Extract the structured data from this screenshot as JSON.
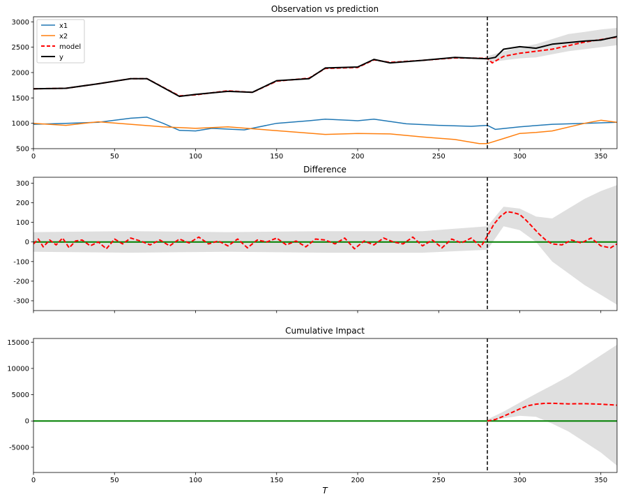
{
  "chart_data": [
    {
      "type": "line",
      "title": "Observation vs prediction",
      "xlabel": "",
      "ylabel": "",
      "xlim": [
        0,
        360
      ],
      "ylim": [
        500,
        3100
      ],
      "xticks": [
        0,
        50,
        100,
        150,
        200,
        250,
        300,
        350
      ],
      "yticks": [
        500,
        1000,
        1500,
        2000,
        2500,
        3000
      ],
      "intervention_x": 280,
      "grid": false,
      "legend_position": "top-left",
      "legend": [
        "x1",
        "x2",
        "model",
        "y"
      ],
      "band_label": "model confidence interval",
      "series": [
        {
          "name": "x1",
          "color": "#1f77b4",
          "style": "solid",
          "x": [
            0,
            20,
            40,
            60,
            70,
            80,
            90,
            100,
            110,
            130,
            150,
            170,
            180,
            200,
            210,
            230,
            250,
            270,
            280,
            285,
            300,
            320,
            340,
            360
          ],
          "y": [
            980,
            1000,
            1020,
            1100,
            1120,
            1000,
            860,
            850,
            900,
            870,
            1000,
            1050,
            1080,
            1050,
            1080,
            990,
            960,
            940,
            960,
            880,
            930,
            980,
            1000,
            1020
          ]
        },
        {
          "name": "x2",
          "color": "#ff7f0e",
          "style": "solid",
          "x": [
            0,
            20,
            40,
            60,
            80,
            100,
            120,
            140,
            160,
            180,
            200,
            220,
            240,
            260,
            275,
            280,
            290,
            300,
            310,
            320,
            340,
            350,
            360
          ],
          "y": [
            1000,
            960,
            1030,
            980,
            930,
            900,
            930,
            880,
            830,
            780,
            800,
            790,
            730,
            680,
            600,
            600,
            700,
            800,
            820,
            850,
            1000,
            1060,
            1020
          ]
        },
        {
          "name": "model",
          "color": "#ff0000",
          "style": "dashed",
          "x": [
            0,
            20,
            40,
            60,
            70,
            90,
            100,
            120,
            135,
            150,
            170,
            180,
            200,
            210,
            220,
            240,
            260,
            280,
            283,
            290,
            300,
            310,
            320,
            340,
            350,
            360
          ],
          "y": [
            1680,
            1690,
            1780,
            1880,
            1880,
            1540,
            1560,
            1640,
            1610,
            1830,
            1890,
            2080,
            2100,
            2250,
            2200,
            2240,
            2290,
            2280,
            2190,
            2320,
            2380,
            2420,
            2460,
            2600,
            2650,
            2700
          ]
        },
        {
          "name": "y",
          "color": "#000000",
          "style": "solid",
          "x": [
            0,
            20,
            40,
            60,
            70,
            90,
            100,
            120,
            135,
            150,
            170,
            180,
            200,
            210,
            220,
            240,
            260,
            280,
            285,
            290,
            300,
            310,
            320,
            340,
            350,
            360
          ],
          "y": [
            1680,
            1690,
            1780,
            1880,
            1880,
            1530,
            1570,
            1630,
            1610,
            1840,
            1880,
            2090,
            2110,
            2260,
            2190,
            2240,
            2300,
            2270,
            2300,
            2460,
            2510,
            2480,
            2560,
            2620,
            2640,
            2710
          ]
        }
      ],
      "band": {
        "x": [
          280,
          290,
          300,
          310,
          320,
          330,
          340,
          350,
          360
        ],
        "lower": [
          2200,
          2240,
          2280,
          2300,
          2360,
          2420,
          2460,
          2500,
          2540
        ],
        "upper": [
          2320,
          2420,
          2500,
          2560,
          2660,
          2760,
          2800,
          2850,
          2880
        ]
      }
    },
    {
      "type": "line",
      "title": "Difference",
      "xlabel": "",
      "ylabel": "",
      "xlim": [
        0,
        360
      ],
      "ylim": [
        -350,
        330
      ],
      "yticks": [
        -300,
        -200,
        -100,
        0,
        100,
        200,
        300
      ],
      "intervention_x": 280,
      "zero_line_color": "#008000",
      "series": [
        {
          "name": "difference",
          "color": "#ff0000",
          "style": "dashed",
          "x": [
            0,
            3,
            6,
            10,
            14,
            18,
            22,
            26,
            30,
            35,
            40,
            45,
            50,
            55,
            60,
            66,
            72,
            78,
            84,
            90,
            96,
            102,
            108,
            114,
            120,
            126,
            132,
            138,
            144,
            150,
            156,
            162,
            168,
            174,
            180,
            186,
            192,
            198,
            204,
            210,
            216,
            222,
            228,
            234,
            240,
            246,
            252,
            258,
            264,
            270,
            276,
            280,
            284,
            288,
            292,
            296,
            300,
            304,
            308,
            312,
            316,
            320,
            326,
            332,
            338,
            344,
            350,
            356,
            360
          ],
          "y": [
            -10,
            15,
            -25,
            10,
            -15,
            20,
            -30,
            5,
            10,
            -20,
            0,
            -35,
            15,
            -10,
            20,
            5,
            -15,
            10,
            -20,
            15,
            -5,
            25,
            -10,
            5,
            -20,
            15,
            -30,
            10,
            0,
            20,
            -15,
            5,
            -25,
            15,
            10,
            -10,
            20,
            -35,
            5,
            -15,
            20,
            0,
            -10,
            25,
            -20,
            10,
            -30,
            15,
            -5,
            20,
            -25,
            30,
            90,
            130,
            155,
            150,
            140,
            110,
            75,
            40,
            10,
            -10,
            -15,
            10,
            -5,
            20,
            -20,
            -30,
            -10
          ]
        }
      ],
      "band": {
        "x": [
          0,
          60,
          120,
          180,
          240,
          280,
          290,
          300,
          310,
          320,
          330,
          340,
          350,
          360
        ],
        "lower": [
          -50,
          -55,
          -50,
          -55,
          -55,
          -40,
          80,
          60,
          0,
          -100,
          -160,
          -220,
          -270,
          -320
        ],
        "upper": [
          50,
          55,
          50,
          55,
          55,
          80,
          180,
          170,
          130,
          120,
          170,
          220,
          260,
          290
        ]
      }
    },
    {
      "type": "line",
      "title": "Cumulative Impact",
      "xlabel": "T",
      "ylabel": "",
      "xlim": [
        0,
        360
      ],
      "ylim": [
        -9800,
        15700
      ],
      "yticks": [
        -5000,
        0,
        5000,
        10000,
        15000
      ],
      "intervention_x": 280,
      "zero_line_color": "#008000",
      "series": [
        {
          "name": "cumulative",
          "color": "#ff0000",
          "style": "dashed",
          "x": [
            280,
            285,
            290,
            295,
            300,
            305,
            310,
            315,
            320,
            330,
            340,
            350,
            360
          ],
          "y": [
            0,
            300,
            900,
            1600,
            2300,
            2900,
            3200,
            3350,
            3380,
            3250,
            3300,
            3200,
            3000
          ]
        }
      ],
      "band": {
        "x": [
          280,
          290,
          300,
          310,
          320,
          330,
          340,
          350,
          360
        ],
        "lower": [
          -200,
          500,
          1000,
          800,
          -500,
          -2000,
          -4000,
          -6000,
          -8500
        ],
        "upper": [
          300,
          1800,
          3500,
          5200,
          6800,
          8500,
          10500,
          12500,
          14500
        ]
      }
    }
  ]
}
